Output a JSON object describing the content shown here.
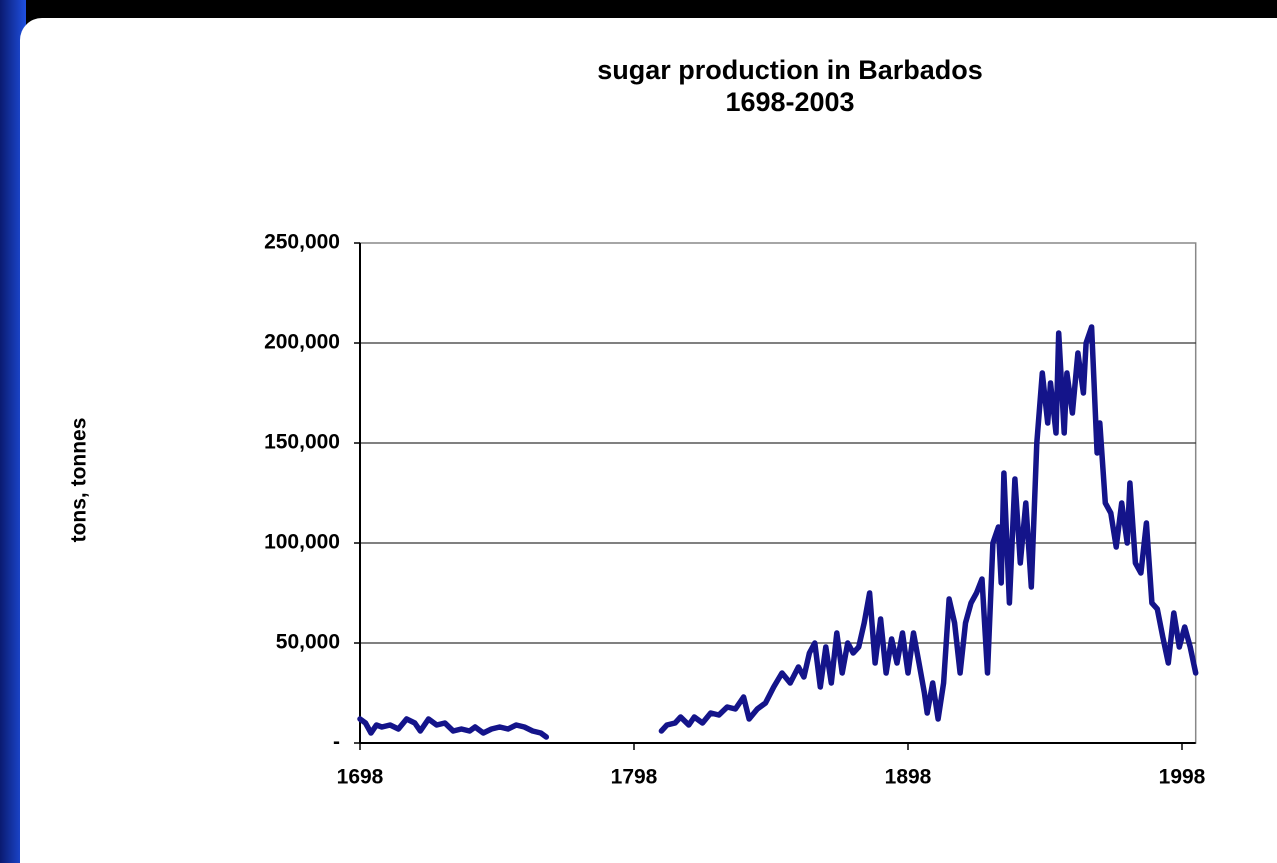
{
  "chart_data": {
    "type": "line",
    "title": "sugar production in Barbados",
    "subtitle": "1698-2003",
    "ylabel": "tons, tonnes",
    "x": [
      1698,
      1700,
      1702,
      1704,
      1706,
      1709,
      1712,
      1715,
      1718,
      1720,
      1723,
      1726,
      1729,
      1732,
      1735,
      1738,
      1740,
      1743,
      1746,
      1749,
      1752,
      1755,
      1758,
      1761,
      1764,
      1766,
      1790,
      1808,
      1810,
      1813,
      1815,
      1818,
      1820,
      1823,
      1826,
      1829,
      1832,
      1835,
      1838,
      1840,
      1843,
      1846,
      1849,
      1852,
      1855,
      1858,
      1860,
      1862,
      1864,
      1866,
      1868,
      1870,
      1872,
      1874,
      1876,
      1878,
      1880,
      1882,
      1884,
      1886,
      1888,
      1890,
      1892,
      1894,
      1896,
      1898,
      1900,
      1902,
      1904,
      1905,
      1907,
      1909,
      1911,
      1913,
      1915,
      1917,
      1919,
      1921,
      1923,
      1925,
      1927,
      1929,
      1931,
      1932,
      1933,
      1935,
      1937,
      1939,
      1941,
      1943,
      1945,
      1947,
      1949,
      1950,
      1952,
      1953,
      1955,
      1956,
      1958,
      1960,
      1962,
      1963,
      1965,
      1967,
      1968,
      1970,
      1972,
      1974,
      1976,
      1978,
      1979,
      1981,
      1983,
      1985,
      1987,
      1989,
      1991,
      1993,
      1995,
      1997,
      1999,
      2001,
      2003
    ],
    "series": [
      {
        "name": "sugar production",
        "color": "#14148a",
        "values": [
          12000,
          10000,
          5000,
          9000,
          8000,
          9000,
          7000,
          12000,
          10000,
          6000,
          12000,
          9000,
          10000,
          6000,
          7000,
          6000,
          8000,
          5000,
          7000,
          8000,
          7000,
          9000,
          8000,
          6000,
          5000,
          3000,
          null,
          6000,
          9000,
          10000,
          13000,
          9000,
          13000,
          10000,
          15000,
          14000,
          18000,
          17000,
          23000,
          12000,
          17000,
          20000,
          28000,
          35000,
          30000,
          38000,
          33000,
          45000,
          50000,
          28000,
          48000,
          30000,
          55000,
          35000,
          50000,
          45000,
          48000,
          60000,
          75000,
          40000,
          62000,
          35000,
          52000,
          40000,
          55000,
          35000,
          55000,
          40000,
          25000,
          15000,
          30000,
          12000,
          30000,
          72000,
          60000,
          35000,
          60000,
          70000,
          75000,
          82000,
          35000,
          100000,
          108000,
          80000,
          135000,
          70000,
          132000,
          90000,
          120000,
          78000,
          150000,
          185000,
          160000,
          180000,
          155000,
          205000,
          155000,
          185000,
          165000,
          195000,
          175000,
          200000,
          208000,
          145000,
          160000,
          120000,
          115000,
          98000,
          120000,
          100000,
          130000,
          90000,
          85000,
          110000,
          70000,
          67000,
          53000,
          40000,
          65000,
          48000,
          58000,
          48000,
          35000
        ]
      }
    ],
    "xlim": [
      1698,
      2003
    ],
    "xticks": [
      1698,
      1798,
      1898,
      1998
    ],
    "ylim": [
      0,
      250000
    ],
    "yticks": [
      {
        "value": 0,
        "label": "-"
      },
      {
        "value": 50000,
        "label": "50,000"
      },
      {
        "value": 100000,
        "label": "100,000"
      },
      {
        "value": 150000,
        "label": "150,000"
      },
      {
        "value": 200000,
        "label": "200,000"
      },
      {
        "value": 250000,
        "label": "250,000"
      }
    ],
    "grid": true
  }
}
